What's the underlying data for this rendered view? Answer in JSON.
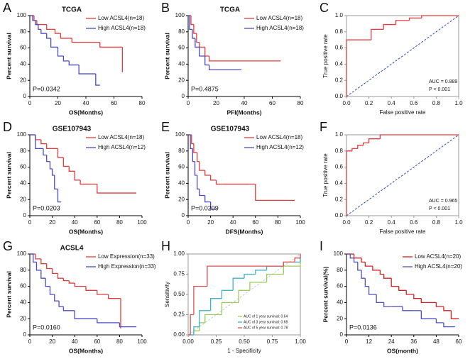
{
  "chart_data": [
    {
      "panel": "A",
      "type": "line",
      "title": "TCGA",
      "x_label": "OS(Months)",
      "y_label": "Percent survival",
      "xlim": [
        0,
        80
      ],
      "ylim": [
        0,
        100
      ],
      "xticks": [
        0,
        20,
        40,
        60,
        80
      ],
      "yticks": [
        0,
        20,
        40,
        60,
        80,
        100
      ],
      "legend": "upper right",
      "annotations": [
        "P=0.0342"
      ],
      "annotation_corner": "lower left",
      "series": [
        {
          "name": "Low ACSL4(n=18)",
          "color": "#e03c3c",
          "x": [
            0,
            3,
            5,
            8,
            12,
            18,
            22,
            30,
            35,
            50,
            65,
            66
          ],
          "values": [
            100,
            94,
            89,
            89,
            83,
            78,
            72,
            67,
            67,
            61,
            61,
            30
          ]
        },
        {
          "name": "High ACSL4(n=18)",
          "color": "#4a4ac8",
          "x": [
            0,
            2,
            4,
            6,
            8,
            12,
            15,
            20,
            24,
            28,
            35,
            47,
            50
          ],
          "values": [
            100,
            94,
            89,
            83,
            78,
            72,
            61,
            50,
            44,
            39,
            28,
            14,
            14
          ]
        }
      ]
    },
    {
      "panel": "B",
      "type": "line",
      "title": "TCGA",
      "x_label": "PFI(Months)",
      "y_label": "Percent survival",
      "xlim": [
        0,
        80
      ],
      "ylim": [
        0,
        100
      ],
      "xticks": [
        0,
        20,
        40,
        60,
        80
      ],
      "yticks": [
        0,
        20,
        40,
        60,
        80,
        100
      ],
      "legend": "upper right",
      "annotations": [
        "P=0.4875"
      ],
      "annotation_corner": "lower left",
      "series": [
        {
          "name": "Low ACSL4(n=18)",
          "color": "#e03c3c",
          "x": [
            0,
            2,
            4,
            6,
            8,
            12,
            15,
            20,
            66
          ],
          "values": [
            100,
            89,
            78,
            67,
            61,
            50,
            44,
            44,
            44
          ]
        },
        {
          "name": "High ACSL4(n=18)",
          "color": "#4a4ac8",
          "x": [
            0,
            1,
            3,
            5,
            8,
            12,
            15,
            38
          ],
          "values": [
            100,
            83,
            72,
            61,
            50,
            39,
            33,
            33
          ]
        }
      ]
    },
    {
      "panel": "C",
      "type": "line",
      "x_label": "False positive rate",
      "y_label": "True positive rate",
      "xlim": [
        0,
        1
      ],
      "ylim": [
        0,
        1
      ],
      "frame": true,
      "diagonal": "#2e4fa8",
      "xticks": [
        {
          "value": 0,
          "label": "0.0"
        },
        0.2,
        0.4,
        0.6,
        0.8,
        {
          "value": 1,
          "label": "1.0"
        }
      ],
      "yticks": [
        {
          "value": 0,
          "label": "0.0"
        },
        0.2,
        0.4,
        0.6,
        0.8,
        {
          "value": 1,
          "label": "1.0"
        }
      ],
      "annotations": [
        "AUC = 0.889",
        "P < 0.001"
      ],
      "annotation_corner": "lower right",
      "series": [
        {
          "color": "#e03c3c",
          "x": [
            0,
            0,
            0.22,
            0.33,
            0.44,
            0.56,
            0.67,
            1
          ],
          "values": [
            0,
            0.7,
            0.83,
            0.89,
            0.94,
            0.97,
            1,
            1
          ]
        }
      ]
    },
    {
      "panel": "D",
      "type": "line",
      "title": "GSE107943",
      "x_label": "OS(Months)",
      "y_label": "Percent survival",
      "xlim": [
        0,
        100
      ],
      "ylim": [
        0,
        100
      ],
      "xticks": [
        0,
        20,
        40,
        60,
        80,
        100
      ],
      "yticks": [
        0,
        20,
        40,
        60,
        80,
        100
      ],
      "legend": "upper right",
      "annotations": [
        "P=0.0203"
      ],
      "annotation_corner": "lower left",
      "series": [
        {
          "name": "Low ACSL4(n=18)",
          "color": "#e03c3c",
          "x": [
            0,
            5,
            10,
            15,
            20,
            25,
            30,
            35,
            40,
            45,
            55,
            60,
            95
          ],
          "values": [
            100,
            94,
            89,
            83,
            83,
            72,
            61,
            55,
            44,
            39,
            39,
            28,
            28
          ]
        },
        {
          "name": "High ACSL4(n=12)",
          "color": "#4a4ac8",
          "x": [
            0,
            5,
            8,
            12,
            15,
            18,
            20,
            22,
            25,
            28
          ],
          "values": [
            100,
            83,
            83,
            75,
            67,
            58,
            50,
            33,
            17,
            17
          ]
        }
      ]
    },
    {
      "panel": "E",
      "type": "line",
      "title": "GSE107943",
      "x_label": "DFS(Months)",
      "y_label": "Percent survival",
      "xlim": [
        0,
        100
      ],
      "ylim": [
        0,
        100
      ],
      "xticks": [
        0,
        20,
        40,
        60,
        80,
        100
      ],
      "yticks": [
        0,
        20,
        40,
        60,
        80,
        100
      ],
      "legend": "upper right",
      "annotations": [
        "P=0.0209"
      ],
      "annotation_corner": "lower left",
      "series": [
        {
          "name": "Low ACSL4(n=18)",
          "color": "#e03c3c",
          "x": [
            0,
            3,
            5,
            8,
            10,
            15,
            20,
            25,
            30,
            55,
            60,
            95
          ],
          "values": [
            100,
            89,
            78,
            67,
            56,
            50,
            44,
            39,
            39,
            39,
            19,
            19
          ]
        },
        {
          "name": "High ACSL4(n=12)",
          "color": "#4a4ac8",
          "x": [
            0,
            2,
            4,
            6,
            8,
            10,
            15,
            20,
            25
          ],
          "values": [
            100,
            83,
            67,
            50,
            33,
            25,
            17,
            8,
            8
          ]
        }
      ]
    },
    {
      "panel": "F",
      "type": "line",
      "x_label": "False positive rate",
      "y_label": "True positive rate",
      "xlim": [
        0,
        1
      ],
      "ylim": [
        0,
        1
      ],
      "frame": true,
      "diagonal": "#2e4fa8",
      "xticks": [
        {
          "value": 0,
          "label": "0.0"
        },
        0.2,
        0.4,
        0.6,
        0.8,
        {
          "value": 1,
          "label": "1.0"
        }
      ],
      "yticks": [
        {
          "value": 0,
          "label": "0.0"
        },
        0.2,
        0.4,
        0.6,
        0.8,
        {
          "value": 1,
          "label": "1.0"
        }
      ],
      "annotations": [
        "AUC = 0.965",
        "P < 0.001"
      ],
      "annotation_corner": "lower right",
      "series": [
        {
          "color": "#e03c3c",
          "x": [
            0,
            0,
            0.05,
            0.1,
            0.15,
            0.2,
            0.3,
            1
          ],
          "values": [
            0,
            0.8,
            0.83,
            0.87,
            0.9,
            0.95,
            1,
            1
          ]
        }
      ]
    },
    {
      "panel": "G",
      "type": "line",
      "title": "ACSL4",
      "x_label": "OS(Months)",
      "y_label": "Percent survival",
      "xlim": [
        0,
        100
      ],
      "ylim": [
        0,
        100
      ],
      "xticks": [
        0,
        20,
        40,
        60,
        80,
        100
      ],
      "yticks": [
        0,
        20,
        40,
        60,
        80,
        100
      ],
      "legend": "upper right",
      "annotations": [
        "P=0.0160"
      ],
      "annotation_corner": "lower left",
      "series": [
        {
          "name": "Low Expression(n=33)",
          "color": "#e03c3c",
          "x": [
            0,
            5,
            10,
            15,
            20,
            25,
            30,
            35,
            40,
            50,
            60,
            70,
            80,
            81
          ],
          "values": [
            100,
            94,
            88,
            82,
            76,
            70,
            67,
            64,
            60,
            55,
            50,
            45,
            45,
            8
          ]
        },
        {
          "name": "High Expression(n=33)",
          "color": "#4a4ac8",
          "x": [
            0,
            3,
            6,
            10,
            14,
            18,
            22,
            26,
            30,
            40,
            60,
            80,
            95
          ],
          "values": [
            100,
            90,
            80,
            70,
            60,
            50,
            42,
            35,
            30,
            20,
            15,
            10,
            10
          ]
        }
      ]
    },
    {
      "panel": "H",
      "type": "line",
      "x_label": "1 - Specificity",
      "y_label": "Sensitivity",
      "xlim": [
        0,
        1
      ],
      "ylim": [
        0,
        1
      ],
      "frame": true,
      "diagonal": "#cccccc",
      "legend": "lower right",
      "xticks": [
        {
          "value": 0,
          "label": "0.00"
        },
        {
          "value": 0.25,
          "label": "0.25"
        },
        {
          "value": 0.5,
          "label": "0.50"
        },
        {
          "value": 0.75,
          "label": "0.75"
        },
        {
          "value": 1,
          "label": "1.00"
        }
      ],
      "yticks": [
        {
          "value": 0,
          "label": "0.00"
        },
        {
          "value": 0.25,
          "label": "0.25"
        },
        {
          "value": 0.5,
          "label": "0.50"
        },
        {
          "value": 0.75,
          "label": "0.75"
        },
        {
          "value": 1,
          "label": "1.00"
        }
      ],
      "series": [
        {
          "name": "AUC of 1 year survival: 0.64",
          "color": "#9ccc5a",
          "x": [
            0,
            0.05,
            0.1,
            0.15,
            0.3,
            0.45,
            0.55,
            0.7,
            0.85,
            1
          ],
          "values": [
            0,
            0.05,
            0.15,
            0.25,
            0.4,
            0.55,
            0.65,
            0.75,
            0.85,
            0.95
          ]
        },
        {
          "name": "AUC of 3 year survival: 0.68",
          "color": "#3cb4c8",
          "x": [
            0,
            0.05,
            0.1,
            0.2,
            0.3,
            0.4,
            0.5,
            0.6,
            0.7,
            0.85,
            1
          ],
          "values": [
            0,
            0.1,
            0.3,
            0.45,
            0.55,
            0.7,
            0.75,
            0.8,
            0.85,
            0.9,
            1
          ]
        },
        {
          "name": "AUC of 5 year survival: 0.78",
          "color": "#e05050",
          "x": [
            0,
            0.02,
            0.05,
            0.17,
            0.85,
            0.95,
            1
          ],
          "values": [
            0,
            0.25,
            0.6,
            0.85,
            0.9,
            0.95,
            1
          ]
        }
      ]
    },
    {
      "panel": "I",
      "type": "line",
      "x_label": "OS(month)",
      "y_label": "Percent survival(%)",
      "xlim": [
        0,
        60
      ],
      "ylim": [
        0,
        100
      ],
      "xticks": [
        0,
        12,
        24,
        36,
        48,
        60
      ],
      "yticks": [
        0,
        20,
        40,
        60,
        80,
        100
      ],
      "legend": "upper right",
      "annotations": [
        "P=0.0136"
      ],
      "annotation_corner": "lower left",
      "series": [
        {
          "name": "Low ACSL4(n=20)",
          "color": "#d42020",
          "x": [
            0,
            4,
            8,
            10,
            14,
            18,
            20,
            24,
            28,
            32,
            36,
            40,
            44,
            48,
            52,
            56,
            60
          ],
          "values": [
            100,
            95,
            90,
            85,
            80,
            75,
            70,
            60,
            55,
            50,
            45,
            40,
            40,
            35,
            30,
            20,
            20
          ]
        },
        {
          "name": "High ACSL4(n=20)",
          "color": "#5050c0",
          "x": [
            0,
            2,
            4,
            6,
            8,
            10,
            12,
            16,
            20,
            24,
            30,
            36,
            40,
            48,
            52,
            58
          ],
          "values": [
            100,
            95,
            90,
            80,
            70,
            60,
            50,
            40,
            35,
            35,
            30,
            30,
            20,
            15,
            10,
            10
          ]
        }
      ]
    }
  ]
}
